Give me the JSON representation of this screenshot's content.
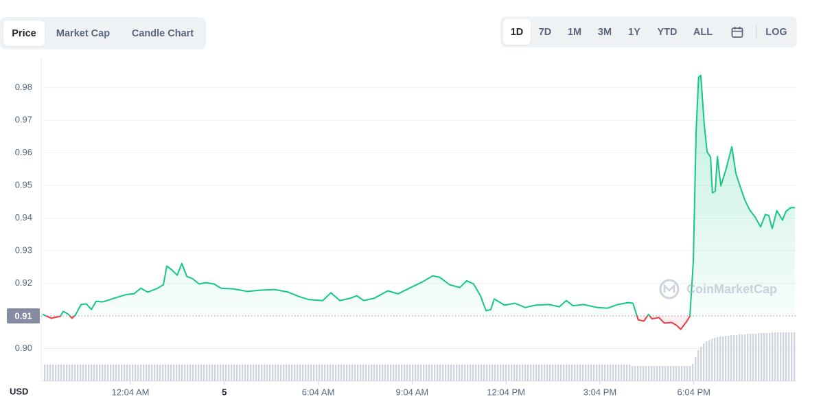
{
  "tabs": [
    "Price",
    "Market Cap",
    "Candle Chart"
  ],
  "ranges": [
    "1D",
    "7D",
    "1M",
    "3M",
    "1Y",
    "YTD",
    "ALL"
  ],
  "log_button": "LOG",
  "chart_data": {
    "type": "line",
    "currency": "USD",
    "watermark": "CoinMarketCap",
    "color_up": "#16c784",
    "color_down": "#ea3943",
    "reference": 0.91,
    "grid": true,
    "xlim": [
      -2.74,
      21.34
    ],
    "ylim": [
      0.89,
      0.989
    ],
    "y2lim": [
      0,
      100
    ],
    "xticks": [
      {
        "value": 0.067,
        "label": "12:04 AM"
      },
      {
        "value": 3.067,
        "label": "5"
      },
      {
        "value": 6.067,
        "label": "6:04 AM"
      },
      {
        "value": 9.067,
        "label": "9:04 AM"
      },
      {
        "value": 12.067,
        "label": "12:04 PM"
      },
      {
        "value": 15.067,
        "label": "3:04 PM"
      },
      {
        "value": 18.067,
        "label": "6:04 PM"
      }
    ],
    "yticks": [
      {
        "value": 0.9,
        "label": "0.90"
      },
      0.92,
      0.93,
      0.94,
      0.95,
      0.96,
      0.97,
      0.98
    ],
    "x": [
      -2.74,
      -2.46,
      -2.17,
      -2.08,
      -1.91,
      -1.8,
      -1.69,
      -1.51,
      -1.34,
      -1.18,
      -1.03,
      -0.81,
      -0.59,
      -0.26,
      -0.04,
      0.18,
      0.4,
      0.62,
      0.94,
      1.12,
      1.23,
      1.38,
      1.56,
      1.71,
      1.87,
      2.04,
      2.26,
      2.48,
      2.74,
      2.96,
      3.36,
      3.8,
      4.23,
      4.67,
      5.11,
      5.44,
      5.77,
      6.21,
      6.47,
      6.76,
      7.08,
      7.3,
      7.52,
      7.85,
      8.29,
      8.62,
      9.06,
      9.39,
      9.72,
      9.94,
      10.26,
      10.59,
      10.81,
      11.03,
      11.25,
      11.43,
      11.58,
      11.69,
      12.02,
      12.35,
      12.68,
      13.01,
      13.44,
      13.77,
      13.99,
      14.21,
      14.54,
      14.98,
      15.31,
      15.64,
      15.97,
      16.12,
      16.29,
      16.47,
      16.62,
      16.73,
      16.95,
      17.13,
      17.35,
      17.5,
      17.65,
      17.83,
      17.94,
      18.05,
      18.14,
      18.22,
      18.29,
      18.4,
      18.49,
      18.6,
      18.66,
      18.75,
      18.82,
      18.93,
      19.1,
      19.28,
      19.41,
      19.54,
      19.69,
      19.85,
      20.02,
      20.2,
      20.35,
      20.46,
      20.57,
      20.72,
      20.9,
      21.01,
      21.16,
      21.3
    ],
    "values": [
      0.9105,
      0.9093,
      0.9099,
      0.9114,
      0.9105,
      0.9093,
      0.9103,
      0.9135,
      0.9137,
      0.912,
      0.9145,
      0.9143,
      0.915,
      0.916,
      0.9166,
      0.9168,
      0.9185,
      0.9173,
      0.9185,
      0.9196,
      0.9253,
      0.9242,
      0.9225,
      0.9261,
      0.9221,
      0.9215,
      0.9198,
      0.9202,
      0.9198,
      0.9185,
      0.9183,
      0.9175,
      0.9179,
      0.9181,
      0.9173,
      0.916,
      0.915,
      0.9147,
      0.9171,
      0.9147,
      0.9154,
      0.9162,
      0.9147,
      0.9154,
      0.9177,
      0.9168,
      0.9189,
      0.9204,
      0.9223,
      0.9219,
      0.9196,
      0.9187,
      0.9208,
      0.9198,
      0.9162,
      0.9116,
      0.912,
      0.9152,
      0.9133,
      0.9139,
      0.9126,
      0.9133,
      0.9135,
      0.9128,
      0.9147,
      0.9131,
      0.9135,
      0.9126,
      0.9124,
      0.9135,
      0.9141,
      0.9139,
      0.9088,
      0.9084,
      0.9105,
      0.9091,
      0.9095,
      0.9078,
      0.908,
      0.9072,
      0.9059,
      0.9082,
      0.9099,
      0.9267,
      0.9667,
      0.9832,
      0.9838,
      0.9688,
      0.9604,
      0.9587,
      0.9478,
      0.9482,
      0.9589,
      0.9499,
      0.9552,
      0.9619,
      0.9537,
      0.9499,
      0.9457,
      0.9425,
      0.9404,
      0.9373,
      0.9411,
      0.9408,
      0.9368,
      0.9423,
      0.9394,
      0.9421,
      0.9432,
      0.9432
    ],
    "volume": [
      24,
      24,
      24,
      24,
      24,
      24,
      24,
      24,
      24,
      24,
      24,
      24,
      24,
      24,
      24,
      24,
      24,
      24,
      24,
      24,
      24,
      24,
      24,
      24,
      24,
      24,
      24,
      24,
      24,
      24,
      24,
      24,
      24,
      24,
      24,
      24,
      24,
      24,
      24,
      24,
      24,
      24,
      24,
      24,
      24,
      24,
      24,
      24,
      24,
      24,
      24,
      24,
      24,
      24,
      24,
      24,
      24,
      24,
      24,
      24,
      24,
      24,
      24,
      24,
      24,
      24,
      24,
      24,
      24,
      24,
      24,
      22,
      22,
      22,
      22,
      22,
      22,
      22,
      22,
      22,
      22,
      22,
      22,
      25,
      35,
      45,
      50,
      55,
      58,
      60,
      62,
      63,
      64,
      65,
      66,
      67,
      67,
      68,
      68,
      69,
      69,
      70,
      70,
      70,
      71,
      71,
      71,
      71,
      71,
      71
    ]
  }
}
